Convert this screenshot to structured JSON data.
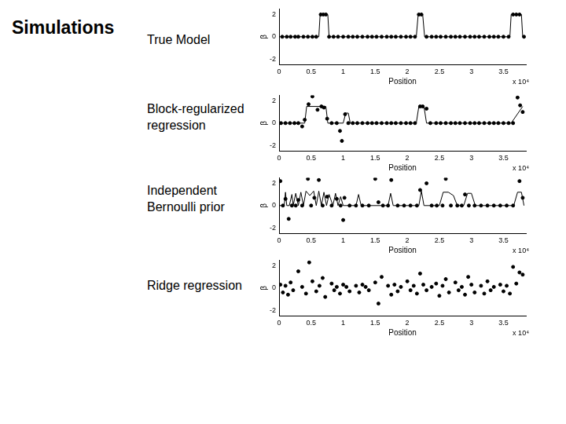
{
  "title": "Simulations",
  "chart_data": [
    {
      "type": "scatter",
      "label": "True Model",
      "x_label": "Position",
      "y_label": "β",
      "annotation": "x 10⁴",
      "xlim": [
        0,
        3.85
      ],
      "xticks": [
        0,
        0.5,
        1,
        1.5,
        2,
        2.5,
        3,
        3.5
      ],
      "ylim": [
        -2.5,
        2.5
      ],
      "yticks": [
        -2,
        0,
        2
      ],
      "grid": false,
      "series": [
        {
          "type": "scatter",
          "marker": "circle",
          "color": "#000000",
          "x": [
            0.05,
            0.12,
            0.18,
            0.25,
            0.3,
            0.38,
            0.45,
            0.52,
            0.58,
            0.65,
            0.69,
            0.73,
            0.78,
            0.85,
            0.92,
            1.0,
            1.08,
            1.15,
            1.22,
            1.3,
            1.38,
            1.45,
            1.52,
            1.6,
            1.68,
            1.75,
            1.82,
            1.9,
            1.98,
            2.05,
            2.12,
            2.18,
            2.22,
            2.3,
            2.38,
            2.45,
            2.52,
            2.6,
            2.68,
            2.75,
            2.82,
            2.9,
            2.98,
            3.05,
            3.12,
            3.2,
            3.28,
            3.35,
            3.42,
            3.5,
            3.58,
            3.65,
            3.7,
            3.75,
            3.82
          ],
          "values": [
            0,
            0,
            0,
            0,
            0,
            0,
            0,
            0,
            0,
            2,
            2,
            2,
            0,
            0,
            0,
            0,
            0,
            0,
            0,
            0,
            0,
            0,
            0,
            0,
            0,
            0,
            0,
            0,
            0,
            0,
            0,
            2,
            2,
            0,
            0,
            0,
            0,
            0,
            0,
            0,
            0,
            0,
            0,
            0,
            0,
            0,
            0,
            0,
            0,
            0,
            0,
            2,
            2,
            2,
            0
          ]
        },
        {
          "type": "line",
          "line_style": "solid",
          "color": "#000000",
          "x": [
            0,
            0.62,
            0.64,
            0.76,
            0.78,
            2.14,
            2.17,
            2.24,
            2.27,
            3.6,
            3.62,
            3.78,
            3.8
          ],
          "values": [
            0,
            0,
            2,
            2,
            0,
            0,
            2,
            2,
            0,
            0,
            2,
            2,
            0
          ]
        }
      ]
    },
    {
      "type": "scatter",
      "label": "Block-regularized regression",
      "x_label": "Position",
      "y_label": "β",
      "annotation": "x 10⁴",
      "xlim": [
        0,
        3.85
      ],
      "xticks": [
        0,
        0.5,
        1,
        1.5,
        2,
        2.5,
        3,
        3.5
      ],
      "ylim": [
        -2.5,
        2.5
      ],
      "yticks": [
        -2,
        0,
        2
      ],
      "grid": false,
      "series": [
        {
          "type": "scatter",
          "marker": "circle",
          "color": "#000000",
          "x": [
            0.03,
            0.1,
            0.17,
            0.24,
            0.3,
            0.36,
            0.4,
            0.46,
            0.52,
            0.6,
            0.66,
            0.7,
            0.75,
            0.82,
            0.9,
            0.95,
            0.98,
            1.03,
            1.08,
            1.15,
            1.22,
            1.3,
            1.38,
            1.45,
            1.52,
            1.6,
            1.68,
            1.75,
            1.82,
            1.9,
            1.98,
            2.05,
            2.12,
            2.2,
            2.24,
            2.3,
            2.36,
            2.45,
            2.52,
            2.6,
            2.68,
            2.75,
            2.82,
            2.9,
            2.98,
            3.05,
            3.12,
            3.2,
            3.28,
            3.35,
            3.42,
            3.5,
            3.58,
            3.65,
            3.72,
            3.76,
            3.8
          ],
          "values": [
            0,
            0,
            0,
            0,
            0,
            -0.3,
            0.3,
            1.7,
            2.4,
            1.2,
            1.5,
            1.4,
            0.4,
            0,
            0,
            -0.7,
            -1.6,
            0.8,
            0,
            0,
            0,
            0,
            0,
            0,
            0,
            0,
            0,
            0,
            0,
            0,
            0,
            0,
            0,
            1.5,
            1.5,
            1.3,
            0,
            0,
            0,
            0,
            0,
            0,
            0,
            0,
            0,
            0,
            0,
            0,
            0,
            0,
            0,
            0,
            0,
            0,
            2.3,
            1.6,
            1.0
          ]
        },
        {
          "type": "line",
          "line_style": "solid",
          "color": "#000000",
          "x": [
            0,
            0.4,
            0.43,
            0.73,
            0.76,
            1.0,
            1.04,
            1.08,
            1.11,
            2.14,
            2.18,
            2.26,
            2.3,
            3.62,
            3.8
          ],
          "values": [
            0,
            0,
            1.5,
            1.5,
            0,
            0,
            0.9,
            0.9,
            0,
            0,
            1.5,
            1.5,
            0,
            0,
            1.5
          ]
        }
      ]
    },
    {
      "type": "scatter",
      "label": "Independent Bernoulli prior",
      "x_label": "Position",
      "y_label": "β",
      "annotation": "x 10⁴",
      "xlim": [
        0,
        3.85
      ],
      "xticks": [
        0,
        0.5,
        1,
        1.5,
        2,
        2.5,
        3,
        3.5
      ],
      "ylim": [
        -2.5,
        2.5
      ],
      "yticks": [
        -2,
        0,
        2
      ],
      "grid": false,
      "series": [
        {
          "type": "scatter",
          "marker": "circle",
          "color": "#000000",
          "x": [
            0.02,
            0.06,
            0.1,
            0.15,
            0.2,
            0.26,
            0.3,
            0.36,
            0.45,
            0.5,
            0.55,
            0.62,
            0.68,
            0.75,
            0.82,
            0.9,
            0.96,
            1.0,
            1.02,
            1.1,
            1.2,
            1.3,
            1.4,
            1.5,
            1.55,
            1.62,
            1.7,
            1.75,
            1.85,
            1.95,
            2.05,
            2.15,
            2.2,
            2.3,
            2.38,
            2.46,
            2.55,
            2.6,
            2.68,
            2.78,
            2.85,
            2.9,
            2.96,
            3.05,
            3.15,
            3.25,
            3.35,
            3.45,
            3.55,
            3.65,
            3.75,
            3.8
          ],
          "values": [
            2.2,
            0,
            0.6,
            -1.2,
            0,
            0,
            0.5,
            0,
            2.4,
            0,
            0.7,
            2.3,
            0,
            0.8,
            0,
            0.6,
            0,
            -1.3,
            0.7,
            0,
            0,
            0,
            0,
            2.4,
            0.3,
            0,
            0,
            2.3,
            0,
            0,
            0,
            0,
            1.4,
            2.0,
            0,
            0,
            0,
            2.4,
            0,
            0,
            0,
            1.0,
            0,
            0,
            0,
            0,
            0,
            0,
            0,
            0,
            2.2,
            0.7
          ]
        },
        {
          "type": "line",
          "line_style": "solid",
          "color": "#000000",
          "x": [
            0,
            0.08,
            0.1,
            0.12,
            0.16,
            0.2,
            0.22,
            0.26,
            0.3,
            0.34,
            0.38,
            0.42,
            0.48,
            0.54,
            0.58,
            0.62,
            0.66,
            0.7,
            0.74,
            0.78,
            0.84,
            0.88,
            0.92,
            0.96,
            1.0,
            1.2,
            1.24,
            1.28,
            1.7,
            1.74,
            1.78,
            2.18,
            2.22,
            2.26,
            2.5,
            2.56,
            2.64,
            2.72,
            2.78,
            2.88,
            2.94,
            3.0,
            3.06,
            3.66,
            3.72,
            3.78,
            3.82
          ],
          "values": [
            0,
            0,
            1.2,
            0,
            0,
            1.0,
            0,
            1.1,
            0,
            1.2,
            0,
            1.3,
            0.9,
            1.3,
            0,
            1.3,
            0,
            1.2,
            0,
            1.0,
            0,
            1.1,
            0,
            0.8,
            0,
            0,
            1.0,
            0,
            0,
            1.1,
            0,
            0,
            1.3,
            0,
            0,
            1.2,
            1.2,
            0.9,
            0,
            0,
            1.1,
            1.1,
            0,
            0,
            1.2,
            1.2,
            0
          ]
        }
      ]
    },
    {
      "type": "scatter",
      "label": "Ridge regression",
      "x_label": "Position",
      "y_label": "β",
      "annotation": "x 10⁴",
      "xlim": [
        0,
        3.85
      ],
      "xticks": [
        0,
        0.5,
        1,
        1.5,
        2,
        2.5,
        3,
        3.5
      ],
      "ylim": [
        -2.5,
        2.5
      ],
      "yticks": [
        -2,
        0,
        2
      ],
      "grid": false,
      "series": [
        {
          "type": "scatter",
          "marker": "circle",
          "color": "#000000",
          "x": [
            0.02,
            0.06,
            0.1,
            0.14,
            0.18,
            0.22,
            0.3,
            0.36,
            0.42,
            0.47,
            0.52,
            0.58,
            0.63,
            0.68,
            0.72,
            0.82,
            0.86,
            0.9,
            0.95,
            1.0,
            1.05,
            1.1,
            1.2,
            1.25,
            1.3,
            1.35,
            1.4,
            1.5,
            1.55,
            1.6,
            1.7,
            1.75,
            1.8,
            1.85,
            1.9,
            2.0,
            2.05,
            2.1,
            2.15,
            2.2,
            2.25,
            2.3,
            2.38,
            2.45,
            2.5,
            2.55,
            2.6,
            2.65,
            2.75,
            2.8,
            2.85,
            2.9,
            2.95,
            3.0,
            3.05,
            3.15,
            3.2,
            3.25,
            3.3,
            3.35,
            3.45,
            3.5,
            3.55,
            3.6,
            3.65,
            3.7,
            3.75,
            3.8
          ],
          "values": [
            0.3,
            -0.4,
            0.2,
            -0.6,
            0.5,
            -0.2,
            1.5,
            0.1,
            -0.5,
            2.3,
            0.6,
            -0.3,
            0.2,
            0.9,
            -0.8,
            0.4,
            -0.2,
            0.1,
            -0.5,
            0.3,
            0.1,
            -0.3,
            0.2,
            -0.4,
            0.3,
            0.1,
            -0.2,
            0.5,
            -1.4,
            1.0,
            0.2,
            -0.6,
            0.3,
            -0.3,
            0.1,
            0.6,
            -0.2,
            0.2,
            -0.5,
            1.3,
            0.3,
            -0.2,
            0.1,
            0.4,
            -0.7,
            0.2,
            0.8,
            -0.4,
            0.5,
            -0.2,
            0.1,
            -0.6,
            1.0,
            0.3,
            -0.4,
            0.2,
            -0.5,
            0.6,
            -0.2,
            0.1,
            0.3,
            -0.3,
            0.2,
            -0.5,
            1.9,
            0.4,
            1.4,
            1.2
          ]
        }
      ]
    }
  ]
}
